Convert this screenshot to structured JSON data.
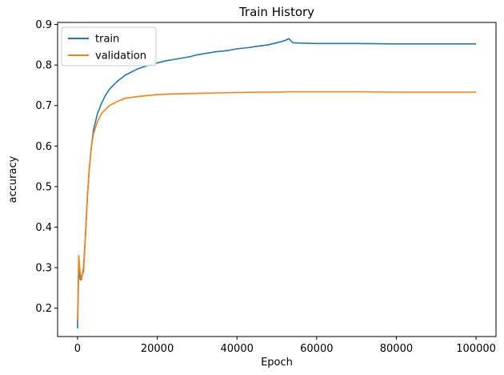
{
  "chart_data": {
    "type": "line",
    "title": "Train History",
    "xlabel": "Epoch",
    "ylabel": "accuracy",
    "xlim": [
      -5000,
      105000
    ],
    "ylim": [
      0.13,
      0.905
    ],
    "xticks": [
      0,
      20000,
      40000,
      60000,
      80000,
      100000
    ],
    "yticks": [
      0.2,
      0.3,
      0.4,
      0.5,
      0.6,
      0.7,
      0.8,
      0.9
    ],
    "grid": false,
    "legend_position": "top-left",
    "series": [
      {
        "name": "train",
        "color": "#1f77b4",
        "x": [
          0,
          300,
          700,
          1000,
          1500,
          2000,
          2500,
          3000,
          3500,
          4000,
          5000,
          6000,
          7000,
          8000,
          10000,
          12000,
          15000,
          18000,
          20000,
          22000,
          25000,
          28000,
          30000,
          33000,
          35000,
          38000,
          40000,
          43000,
          45000,
          48000,
          50000,
          52000,
          53000,
          54000,
          56000,
          60000,
          70000,
          80000,
          90000,
          100000
        ],
        "y": [
          0.15,
          0.3,
          0.27,
          0.28,
          0.29,
          0.38,
          0.48,
          0.55,
          0.6,
          0.64,
          0.68,
          0.705,
          0.725,
          0.74,
          0.76,
          0.775,
          0.79,
          0.8,
          0.805,
          0.81,
          0.815,
          0.82,
          0.825,
          0.83,
          0.833,
          0.836,
          0.84,
          0.843,
          0.846,
          0.85,
          0.855,
          0.86,
          0.865,
          0.855,
          0.854,
          0.853,
          0.853,
          0.852,
          0.852,
          0.852
        ]
      },
      {
        "name": "validation",
        "color": "#ff7f0e",
        "x": [
          0,
          300,
          700,
          1000,
          1500,
          2000,
          2500,
          3000,
          3500,
          4000,
          5000,
          6000,
          7000,
          8000,
          10000,
          12000,
          15000,
          18000,
          20000,
          25000,
          30000,
          35000,
          40000,
          45000,
          50000,
          53000,
          55000,
          60000,
          70000,
          80000,
          90000,
          100000
        ],
        "y": [
          0.17,
          0.33,
          0.28,
          0.27,
          0.3,
          0.38,
          0.48,
          0.55,
          0.6,
          0.63,
          0.66,
          0.68,
          0.69,
          0.7,
          0.71,
          0.718,
          0.722,
          0.725,
          0.727,
          0.729,
          0.73,
          0.731,
          0.732,
          0.733,
          0.733,
          0.734,
          0.734,
          0.734,
          0.734,
          0.733,
          0.733,
          0.733
        ]
      }
    ]
  }
}
